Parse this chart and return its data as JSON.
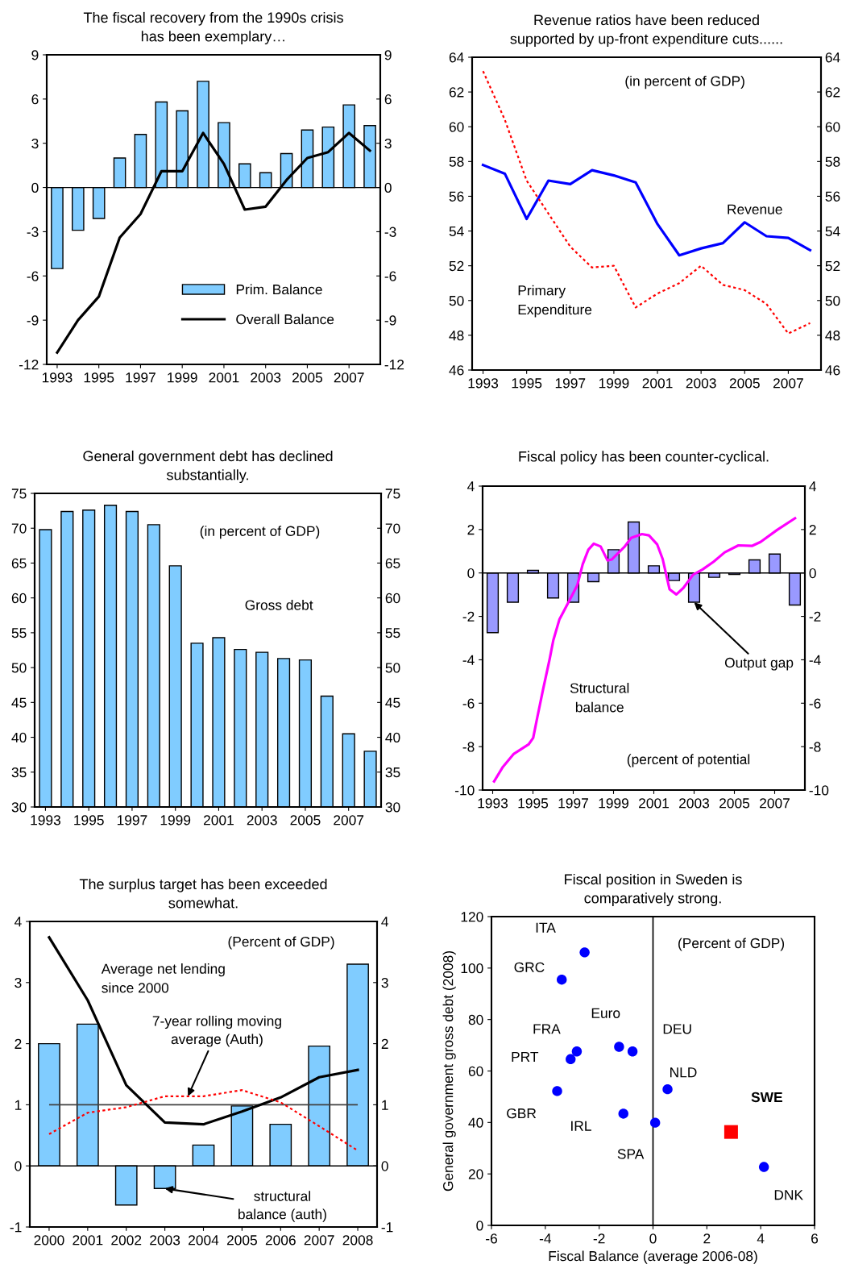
{
  "chart_data": [
    {
      "type": "bar",
      "title": "The fiscal recovery from the 1990s crisis\nhas been exemplary…",
      "categories": [
        "1993",
        null,
        "1995",
        null,
        "1997",
        null,
        "1999",
        null,
        "2001",
        null,
        "2003",
        null,
        "2005",
        null,
        "2007",
        null
      ],
      "series": [
        {
          "name": "Prim. Balance",
          "type": "bar",
          "color": "#80ccff",
          "values": [
            -5.5,
            -2.9,
            -2.1,
            2.0,
            3.6,
            5.8,
            5.2,
            7.2,
            4.4,
            1.6,
            1.0,
            2.3,
            3.9,
            4.1,
            5.6,
            4.2
          ]
        },
        {
          "name": "Overall Balance",
          "type": "line",
          "color": "#000000",
          "values": [
            -11.2,
            -9.0,
            -7.4,
            -3.4,
            -1.8,
            1.1,
            1.1,
            3.7,
            1.6,
            -1.5,
            -1.3,
            0.5,
            2.0,
            2.4,
            3.7,
            2.5
          ]
        }
      ],
      "ylim": [
        -12,
        9
      ],
      "yticks": [
        -12,
        -9,
        -6,
        -3,
        0,
        3,
        6,
        9
      ],
      "y2lim": [
        -12,
        9
      ],
      "y2ticks": [
        -12,
        -9,
        -6,
        -3,
        0,
        3,
        6,
        9
      ],
      "legend": "lower right"
    },
    {
      "type": "line",
      "title": "Revenue ratios have been reduced\nsupported by up-front expenditure cuts......",
      "categories": [
        "1993",
        null,
        "1995",
        null,
        "1997",
        null,
        "1999",
        null,
        "2001",
        null,
        "2003",
        null,
        "2005",
        null,
        "2007",
        null
      ],
      "series": [
        {
          "color": "#0000ff",
          "line_style": "solid",
          "values": [
            57.8,
            57.3,
            54.7,
            56.9,
            56.7,
            57.5,
            57.2,
            56.8,
            54.4,
            52.6,
            53.0,
            53.3,
            54.5,
            53.7,
            53.6,
            52.9
          ]
        },
        {
          "color": "#ff0000",
          "line_style": "dotted",
          "values": [
            63.2,
            60.4,
            56.9,
            55.0,
            53.1,
            51.9,
            52.0,
            49.6,
            50.4,
            51.0,
            52.0,
            50.9,
            50.6,
            49.8,
            48.1,
            48.7
          ]
        }
      ],
      "ylim": [
        46,
        64
      ],
      "yticks": [
        46,
        48,
        50,
        52,
        54,
        56,
        58,
        60,
        62,
        64
      ],
      "y2lim": [
        46,
        64
      ],
      "y2ticks": [
        46,
        48,
        50,
        52,
        54,
        56,
        58,
        60,
        62,
        64
      ],
      "annotations": [
        "(in percent of GDP)",
        "Revenue",
        "Primary\nExpenditure"
      ]
    },
    {
      "type": "bar",
      "title": "General government debt has declined\nsubstantially.",
      "categories": [
        "1993",
        null,
        "1995",
        null,
        "1997",
        null,
        "1999",
        null,
        "2001",
        null,
        "2003",
        null,
        "2005",
        null,
        "2007",
        null
      ],
      "series": [
        {
          "color": "#80ccff",
          "values": [
            69.8,
            72.4,
            72.6,
            73.3,
            72.4,
            70.5,
            64.6,
            53.5,
            54.3,
            52.6,
            52.2,
            51.3,
            51.1,
            45.9,
            40.5,
            38.0
          ]
        }
      ],
      "ylim": [
        30,
        75
      ],
      "yticks": [
        30,
        35,
        40,
        45,
        50,
        55,
        60,
        65,
        70,
        75
      ],
      "y2lim": [
        30,
        75
      ],
      "y2ticks": [
        30,
        35,
        40,
        45,
        50,
        55,
        60,
        65,
        70,
        75
      ],
      "annotations": [
        "(in percent of GDP)",
        "Gross debt"
      ]
    },
    {
      "type": "bar",
      "title": "Fiscal policy has been counter-cyclical.",
      "x": [
        1993,
        1994,
        1995,
        1996,
        1997,
        1998,
        1999,
        2000,
        2001,
        2002,
        2003,
        2004,
        2005,
        2006,
        2007,
        2008
      ],
      "series": [
        {
          "type": "bar",
          "color": "#9999ff",
          "values": [
            -2.75,
            -1.35,
            0.12,
            -1.15,
            -1.35,
            -0.4,
            1.07,
            2.35,
            0.33,
            -0.35,
            -1.35,
            -0.2,
            -0.07,
            0.6,
            0.87,
            -1.48
          ]
        },
        {
          "type": "line",
          "color": "#ff00ff",
          "x": [
            1993.07,
            1993.51,
            1994.05,
            1994.78,
            1995.01,
            1995.22,
            1995.49,
            1995.83,
            1996.01,
            1996.31,
            1996.79,
            1997.2,
            1997.47,
            1997.75,
            1998.02,
            1998.36,
            1998.7,
            1998.91,
            1999.53,
            1999.87,
            2000.41,
            2000.76,
            2001.17,
            2001.44,
            2001.78,
            2002.12,
            2002.47,
            2002.95,
            2003.42,
            2003.97,
            2004.52,
            2005.2,
            2005.89,
            2006.3,
            2007.12,
            2008.01
          ],
          "values": [
            -9.6,
            -8.93,
            -8.33,
            -7.9,
            -7.6,
            -6.63,
            -5.42,
            -3.96,
            -3.1,
            -2.15,
            -1.3,
            -0.57,
            0.4,
            1.07,
            1.35,
            1.22,
            0.58,
            0.62,
            1.19,
            1.61,
            1.79,
            1.73,
            1.31,
            0.64,
            -0.75,
            -0.99,
            -0.69,
            -0.08,
            0.16,
            0.52,
            0.95,
            1.27,
            1.25,
            1.43,
            1.98,
            2.52
          ]
        }
      ],
      "xlim": [
        1992.5,
        2008.5
      ],
      "xticks": [
        1993,
        1995,
        1997,
        1999,
        2001,
        2003,
        2005,
        2007
      ],
      "ylim": [
        -10,
        4
      ],
      "yticks": [
        -10,
        -8,
        -6,
        -4,
        -2,
        0,
        2,
        4
      ],
      "y2lim": [
        -10,
        4
      ],
      "y2ticks": [
        -10,
        -8,
        -6,
        -4,
        -2,
        0,
        2,
        4
      ],
      "annotations": [
        "Structural\nbalance",
        "(percent of potential",
        {
          "text": "Output gap",
          "x": 2003,
          "y": -1.35
        }
      ]
    },
    {
      "type": "bar",
      "title": "The surplus target has been exceeded\nsomewhat.",
      "x": [
        2000,
        2001,
        2002,
        2003,
        2004,
        2005,
        2006,
        2007,
        2008
      ],
      "series": [
        {
          "type": "bar",
          "color": "#80ccff",
          "values": [
            2.0,
            2.32,
            -0.64,
            -0.37,
            0.34,
            0.98,
            0.68,
            1.96,
            3.3
          ]
        },
        {
          "type": "line",
          "color": "#000000",
          "line_style": "solid",
          "values": [
            3.74,
            2.71,
            1.32,
            0.71,
            0.68,
            0.89,
            1.12,
            1.45,
            1.57
          ]
        },
        {
          "type": "line",
          "color": "#ff0000",
          "line_style": "dotted",
          "values": [
            0.52,
            0.87,
            0.96,
            1.14,
            1.14,
            1.24,
            1.04,
            0.65,
            0.25
          ]
        }
      ],
      "xlim": [
        1999.5,
        2008.5
      ],
      "xticks": [
        2000,
        2001,
        2002,
        2003,
        2004,
        2005,
        2006,
        2007,
        2008
      ],
      "ylim": [
        -1,
        4
      ],
      "yticks": [
        -1,
        0,
        1,
        2,
        3,
        4
      ],
      "y2lim": [
        -1,
        4
      ],
      "y2ticks": [
        -1,
        0,
        1,
        2,
        3,
        4
      ],
      "ref_lines": [
        {
          "axis": "y",
          "value": 1,
          "color": "#404040"
        }
      ],
      "annotations": [
        "(Percent of GDP)",
        "Average net lending\nsince 2000",
        {
          "text": "7-year rolling moving\naverage (Auth)",
          "x": 2003.6,
          "y": 1.14
        },
        {
          "text": "structural\nbalance (auth)",
          "x": 2003,
          "y": -0.37
        }
      ]
    },
    {
      "type": "scatter",
      "title": "Fiscal position in Sweden is\ncomparatively strong.",
      "xlabel": "Fiscal Balance (average 2006-08)",
      "ylabel": "General government gross debt (2008)",
      "series": [
        {
          "color": "#0000ff",
          "marker": "circle",
          "x": [
            -2.54,
            -3.39,
            -1.26,
            -0.76,
            -2.83,
            -3.06,
            -3.56,
            0.54,
            -1.1,
            0.08,
            4.12
          ],
          "values": [
            106.1,
            95.5,
            69.4,
            67.6,
            67.6,
            64.6,
            52.2,
            52.9,
            43.4,
            39.9,
            22.7
          ]
        },
        {
          "color": "#ff0000",
          "marker": "square",
          "x": [
            2.9
          ],
          "values": [
            36.3
          ]
        }
      ],
      "xlim": [
        -6,
        6
      ],
      "xticks": [
        -6,
        -4,
        -2,
        0,
        2,
        4,
        6
      ],
      "ylim": [
        0,
        120
      ],
      "yticks": [
        0,
        20,
        40,
        60,
        80,
        100,
        120
      ],
      "ref_lines": [
        {
          "axis": "x",
          "value": 0,
          "color": "#000000"
        }
      ],
      "annotations": [
        "(Percent of GDP)",
        {
          "text": "ITA",
          "x": -2.54,
          "y": 106.1
        },
        {
          "text": "GRC",
          "x": -3.39,
          "y": 95.5
        },
        {
          "text": "Euro",
          "x": -1.26,
          "y": 69.4
        },
        {
          "text": "DEU",
          "x": -0.76,
          "y": 67.6
        },
        {
          "text": "FRA",
          "x": -2.83,
          "y": 67.6
        },
        {
          "text": "PRT",
          "x": -3.06,
          "y": 64.6
        },
        {
          "text": "GBR",
          "x": -3.56,
          "y": 52.2
        },
        {
          "text": "NLD",
          "x": 0.54,
          "y": 52.9
        },
        {
          "text": "IRL",
          "x": -1.1,
          "y": 43.4
        },
        {
          "text": "SPA",
          "x": 0.08,
          "y": 39.9
        },
        {
          "text": "DNK",
          "x": 4.12,
          "y": 22.7
        },
        {
          "text": "SWE",
          "x": 2.9,
          "y": 36.3
        }
      ]
    }
  ]
}
